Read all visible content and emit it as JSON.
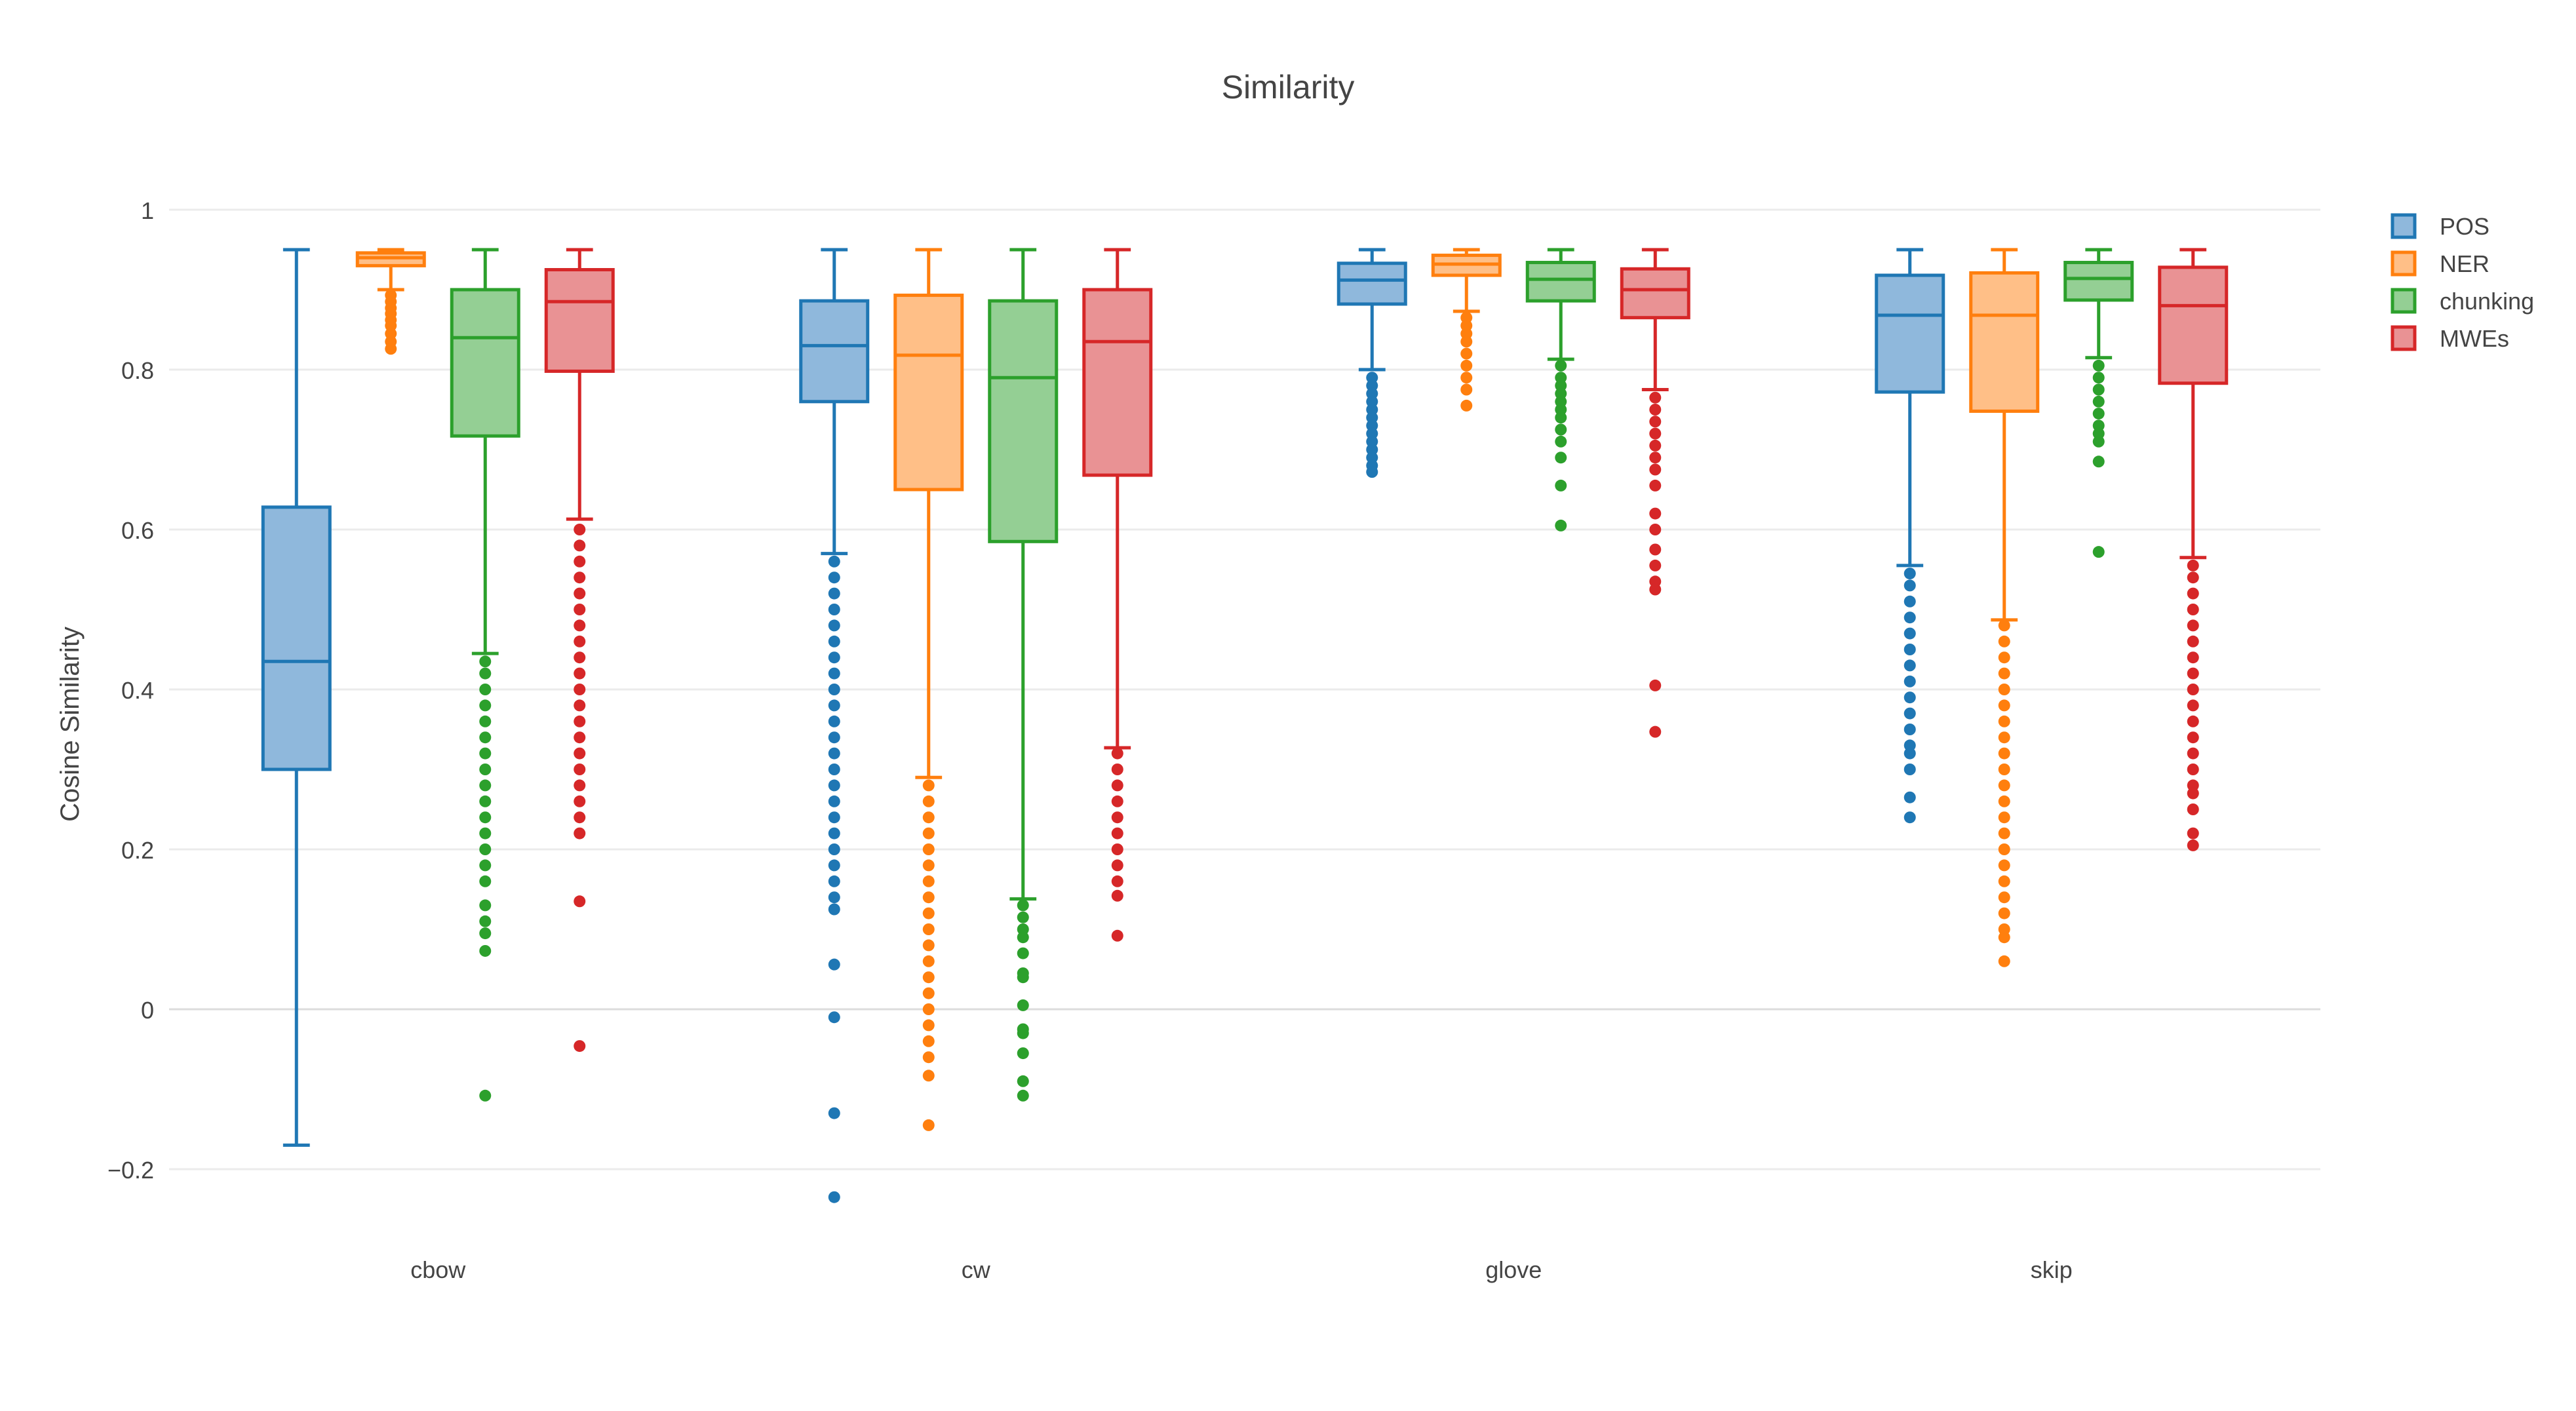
{
  "chart_data": {
    "type": "box",
    "title": "Similarity",
    "xlabel": "",
    "ylabel": "Cosine Similarity",
    "ylim": [
      -0.26,
      1.0
    ],
    "yticks": [
      {
        "value": 1.0,
        "label": "1"
      },
      {
        "value": 0.8,
        "label": "0.8"
      },
      {
        "value": 0.6,
        "label": "0.6"
      },
      {
        "value": 0.4,
        "label": "0.4"
      },
      {
        "value": 0.2,
        "label": "0.2"
      },
      {
        "value": 0.0,
        "label": "0"
      },
      {
        "value": -0.2,
        "label": "−0.2"
      }
    ],
    "grid": true,
    "legend_position": "top-right",
    "categories": [
      "cbow",
      "cw",
      "glove",
      "skip"
    ],
    "series": [
      {
        "name": "POS",
        "color": "#1f77b4",
        "fill": "#8fb8dc",
        "boxes": [
          {
            "q1": 0.3,
            "median": 0.435,
            "q3": 0.628,
            "lower_whisker": -0.17,
            "upper_whisker": 0.95,
            "outliers": []
          },
          {
            "q1": 0.76,
            "median": 0.83,
            "q3": 0.886,
            "lower_whisker": 0.57,
            "upper_whisker": 0.95,
            "outliers": [
              0.56,
              0.54,
              0.52,
              0.5,
              0.48,
              0.46,
              0.44,
              0.42,
              0.4,
              0.38,
              0.36,
              0.34,
              0.32,
              0.3,
              0.28,
              0.26,
              0.24,
              0.22,
              0.2,
              0.18,
              0.16,
              0.14,
              0.125,
              0.056,
              -0.01,
              -0.13,
              -0.235
            ]
          },
          {
            "q1": 0.882,
            "median": 0.912,
            "q3": 0.933,
            "lower_whisker": 0.8,
            "upper_whisker": 0.95,
            "outliers": [
              0.79,
              0.78,
              0.77,
              0.76,
              0.75,
              0.74,
              0.73,
              0.72,
              0.71,
              0.7,
              0.69,
              0.68,
              0.672
            ]
          },
          {
            "q1": 0.772,
            "median": 0.868,
            "q3": 0.918,
            "lower_whisker": 0.555,
            "upper_whisker": 0.95,
            "outliers": [
              0.545,
              0.53,
              0.51,
              0.49,
              0.47,
              0.45,
              0.43,
              0.41,
              0.39,
              0.37,
              0.35,
              0.33,
              0.32,
              0.3,
              0.265,
              0.24
            ]
          }
        ]
      },
      {
        "name": "NER",
        "color": "#ff7f0e",
        "fill": "#ffbf87",
        "boxes": [
          {
            "q1": 0.93,
            "median": 0.94,
            "q3": 0.946,
            "lower_whisker": 0.9,
            "upper_whisker": 0.95,
            "outliers": [
              0.893,
              0.885,
              0.877,
              0.87,
              0.862,
              0.855,
              0.845,
              0.835,
              0.826
            ]
          },
          {
            "q1": 0.65,
            "median": 0.818,
            "q3": 0.893,
            "lower_whisker": 0.29,
            "upper_whisker": 0.95,
            "outliers": [
              0.28,
              0.26,
              0.24,
              0.22,
              0.2,
              0.18,
              0.16,
              0.14,
              0.12,
              0.1,
              0.08,
              0.06,
              0.04,
              0.02,
              0.0,
              -0.02,
              -0.04,
              -0.06,
              -0.083,
              -0.145
            ]
          },
          {
            "q1": 0.918,
            "median": 0.932,
            "q3": 0.943,
            "lower_whisker": 0.873,
            "upper_whisker": 0.95,
            "outliers": [
              0.865,
              0.855,
              0.845,
              0.835,
              0.82,
              0.805,
              0.79,
              0.775,
              0.755
            ]
          },
          {
            "q1": 0.748,
            "median": 0.868,
            "q3": 0.921,
            "lower_whisker": 0.487,
            "upper_whisker": 0.95,
            "outliers": [
              0.48,
              0.46,
              0.44,
              0.42,
              0.4,
              0.38,
              0.36,
              0.34,
              0.32,
              0.3,
              0.28,
              0.26,
              0.24,
              0.22,
              0.2,
              0.18,
              0.16,
              0.14,
              0.12,
              0.1,
              0.09,
              0.06
            ]
          }
        ]
      },
      {
        "name": "chunking",
        "color": "#2ca02c",
        "fill": "#94cf94",
        "boxes": [
          {
            "q1": 0.717,
            "median": 0.84,
            "q3": 0.9,
            "lower_whisker": 0.445,
            "upper_whisker": 0.95,
            "outliers": [
              0.435,
              0.42,
              0.4,
              0.38,
              0.36,
              0.34,
              0.32,
              0.3,
              0.28,
              0.26,
              0.24,
              0.22,
              0.2,
              0.18,
              0.16,
              0.13,
              0.11,
              0.095,
              0.073,
              -0.108
            ]
          },
          {
            "q1": 0.585,
            "median": 0.79,
            "q3": 0.886,
            "lower_whisker": 0.138,
            "upper_whisker": 0.95,
            "outliers": [
              0.13,
              0.115,
              0.1,
              0.09,
              0.07,
              0.045,
              0.04,
              0.005,
              -0.025,
              -0.03,
              -0.055,
              -0.09,
              -0.108
            ]
          },
          {
            "q1": 0.886,
            "median": 0.913,
            "q3": 0.934,
            "lower_whisker": 0.813,
            "upper_whisker": 0.95,
            "outliers": [
              0.805,
              0.79,
              0.78,
              0.77,
              0.76,
              0.75,
              0.74,
              0.725,
              0.71,
              0.69,
              0.655,
              0.605
            ]
          },
          {
            "q1": 0.887,
            "median": 0.914,
            "q3": 0.934,
            "lower_whisker": 0.815,
            "upper_whisker": 0.95,
            "outliers": [
              0.805,
              0.79,
              0.775,
              0.76,
              0.745,
              0.73,
              0.72,
              0.71,
              0.685,
              0.572
            ]
          }
        ]
      },
      {
        "name": "MWEs",
        "color": "#d62728",
        "fill": "#e99294",
        "boxes": [
          {
            "q1": 0.798,
            "median": 0.885,
            "q3": 0.925,
            "lower_whisker": 0.613,
            "upper_whisker": 0.95,
            "outliers": [
              0.6,
              0.58,
              0.56,
              0.54,
              0.52,
              0.5,
              0.48,
              0.46,
              0.44,
              0.42,
              0.4,
              0.38,
              0.36,
              0.34,
              0.32,
              0.3,
              0.28,
              0.26,
              0.24,
              0.22,
              0.135,
              -0.046
            ]
          },
          {
            "q1": 0.668,
            "median": 0.835,
            "q3": 0.9,
            "lower_whisker": 0.327,
            "upper_whisker": 0.95,
            "outliers": [
              0.32,
              0.3,
              0.28,
              0.26,
              0.24,
              0.22,
              0.2,
              0.18,
              0.16,
              0.142,
              0.092
            ]
          },
          {
            "q1": 0.865,
            "median": 0.9,
            "q3": 0.926,
            "lower_whisker": 0.775,
            "upper_whisker": 0.95,
            "outliers": [
              0.765,
              0.75,
              0.735,
              0.72,
              0.705,
              0.69,
              0.675,
              0.655,
              0.62,
              0.6,
              0.575,
              0.555,
              0.535,
              0.525,
              0.405,
              0.347
            ]
          },
          {
            "q1": 0.783,
            "median": 0.88,
            "q3": 0.928,
            "lower_whisker": 0.565,
            "upper_whisker": 0.95,
            "outliers": [
              0.555,
              0.54,
              0.52,
              0.5,
              0.48,
              0.46,
              0.44,
              0.42,
              0.4,
              0.38,
              0.36,
              0.34,
              0.32,
              0.3,
              0.28,
              0.27,
              0.25,
              0.22,
              0.205
            ]
          }
        ]
      }
    ]
  }
}
